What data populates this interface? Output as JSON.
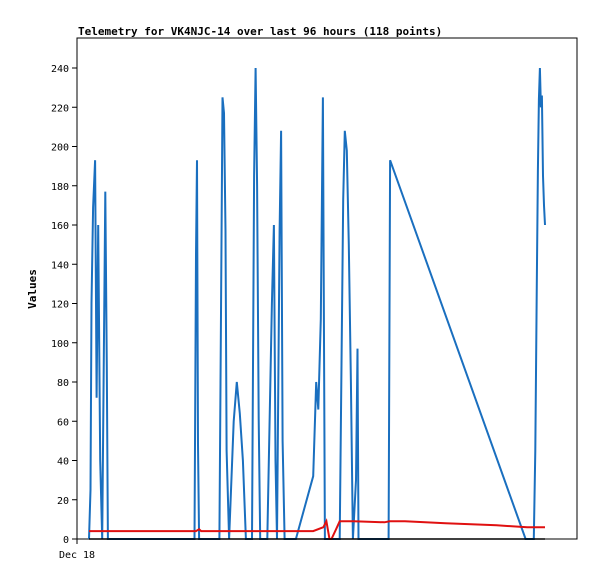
{
  "chart_data": {
    "type": "line",
    "title": "Telemetry for VK4NJC-14 over last 96 hours (118 points)",
    "xlabel": "",
    "ylabel": "Values",
    "ylim": [
      0,
      240
    ],
    "yticks": [
      0,
      20,
      40,
      60,
      80,
      100,
      120,
      140,
      160,
      180,
      200,
      220,
      240
    ],
    "xlim": [
      0,
      96
    ],
    "xtick_labels": [
      {
        "x": 0,
        "label": "Dec 18"
      }
    ],
    "grid": false,
    "legend": "none",
    "colors": {
      "blue": "#1a6fbf",
      "red": "#e01010",
      "black": "#000000"
    },
    "series": [
      {
        "color": "#1a6fbf",
        "points": [
          [
            0,
            0
          ],
          [
            0.3,
            25
          ],
          [
            0.5,
            120
          ],
          [
            0.8,
            169
          ],
          [
            1.2,
            193
          ],
          [
            1.5,
            72
          ],
          [
            1.8,
            160
          ],
          [
            2.2,
            40
          ],
          [
            2.6,
            0
          ],
          [
            3.2,
            177
          ],
          [
            3.5,
            88
          ],
          [
            3.7,
            0
          ],
          [
            20.7,
            0
          ],
          [
            20.8,
            48
          ],
          [
            21.0,
            145
          ],
          [
            21.2,
            193
          ],
          [
            21.4,
            48
          ],
          [
            21.6,
            0
          ],
          [
            25.6,
            0
          ],
          [
            25.9,
            115
          ],
          [
            26.2,
            225
          ],
          [
            26.5,
            217
          ],
          [
            26.8,
            157
          ],
          [
            27.0,
            45
          ],
          [
            27.5,
            0
          ],
          [
            28.4,
            60
          ],
          [
            29.0,
            80
          ],
          [
            29.6,
            64
          ],
          [
            30.2,
            40
          ],
          [
            30.8,
            0
          ],
          [
            32.0,
            0
          ],
          [
            32.4,
            185
          ],
          [
            32.7,
            240
          ],
          [
            33.0,
            180
          ],
          [
            33.3,
            61
          ],
          [
            33.6,
            0
          ],
          [
            35.0,
            0
          ],
          [
            35.9,
            120
          ],
          [
            36.3,
            160
          ],
          [
            36.6,
            40
          ],
          [
            36.9,
            0
          ],
          [
            37.4,
            157
          ],
          [
            37.7,
            208
          ],
          [
            38.0,
            50
          ],
          [
            38.4,
            0
          ],
          [
            40.6,
            0
          ],
          [
            44.0,
            32
          ],
          [
            44.6,
            80
          ],
          [
            45.0,
            66
          ],
          [
            45.5,
            112
          ],
          [
            45.9,
            225
          ],
          [
            46.3,
            0
          ],
          [
            49.2,
            0
          ],
          [
            49.9,
            173
          ],
          [
            50.2,
            208
          ],
          [
            50.6,
            198
          ],
          [
            51.0,
            150
          ],
          [
            51.4,
            80
          ],
          [
            51.8,
            0
          ],
          [
            52.4,
            30
          ],
          [
            52.7,
            97
          ],
          [
            52.9,
            0
          ],
          [
            58.8,
            0
          ],
          [
            59.1,
            193
          ],
          [
            85.7,
            0
          ],
          [
            87.3,
            0
          ],
          [
            87.6,
            45
          ],
          [
            87.9,
            130
          ],
          [
            88.1,
            188
          ],
          [
            88.3,
            224
          ],
          [
            88.5,
            240
          ],
          [
            88.7,
            220
          ],
          [
            88.9,
            226
          ],
          [
            89.1,
            185
          ],
          [
            89.3,
            170
          ],
          [
            89.5,
            160
          ]
        ]
      },
      {
        "color": "#e01010",
        "points": [
          [
            0,
            4
          ],
          [
            20.0,
            4
          ],
          [
            21.0,
            4
          ],
          [
            21.6,
            5
          ],
          [
            22.0,
            4
          ],
          [
            30.0,
            4
          ],
          [
            44.0,
            4
          ],
          [
            46.0,
            6
          ],
          [
            46.6,
            9
          ],
          [
            47.2,
            0
          ],
          [
            47.6,
            0
          ],
          [
            48.5,
            5
          ],
          [
            49.2,
            9
          ],
          [
            52.0,
            9
          ],
          [
            58.0,
            8.5
          ],
          [
            59.0,
            9
          ],
          [
            62.0,
            9
          ],
          [
            70.0,
            8
          ],
          [
            80.0,
            7
          ],
          [
            86.0,
            6
          ],
          [
            89.5,
            6
          ]
        ]
      },
      {
        "color": "#000000",
        "points": [
          [
            0,
            0
          ],
          [
            89.5,
            0
          ]
        ]
      }
    ]
  }
}
